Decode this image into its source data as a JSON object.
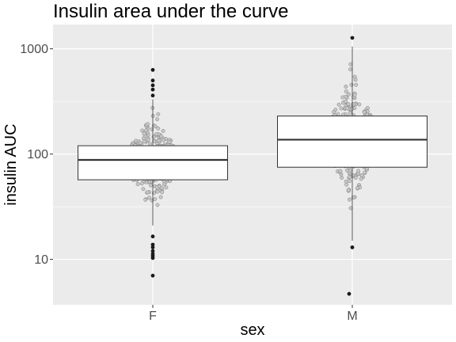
{
  "chart_data": {
    "type": "boxplot",
    "title": "Insulin area under the curve",
    "xlabel": "sex",
    "ylabel": "insulin AUC",
    "y_scale": "log10",
    "ylim": [
      3.7,
      1700
    ],
    "y_ticks": [
      10,
      100,
      1000
    ],
    "y_minor_ticks": [
      31.6,
      316
    ],
    "y_tick_labels": [
      "10",
      "100",
      "1000"
    ],
    "grid": true,
    "categories": [
      "F",
      "M"
    ],
    "boxes": [
      {
        "category": "F",
        "q1": 57,
        "median": 88,
        "q3": 120,
        "whisker_low": 21,
        "whisker_high": 330,
        "outliers": [
          7,
          10.3,
          10.8,
          11.3,
          12,
          13,
          13.8,
          16.5,
          360,
          410,
          450,
          500,
          630
        ]
      },
      {
        "category": "M",
        "q1": 75,
        "median": 137,
        "q3": 230,
        "whisker_low": 15,
        "whisker_high": 1050,
        "outliers": [
          4.7,
          13,
          1270
        ]
      }
    ],
    "points_note": "",
    "colors": {
      "panel_background": "#ebebeb",
      "grid_major": "#ffffff",
      "box_fill": "#ffffff",
      "box_line": "#333333",
      "point_fill": "#c8c8c8",
      "point_outline": "#7a7a7a",
      "outlier": "#1a1a1a"
    }
  }
}
